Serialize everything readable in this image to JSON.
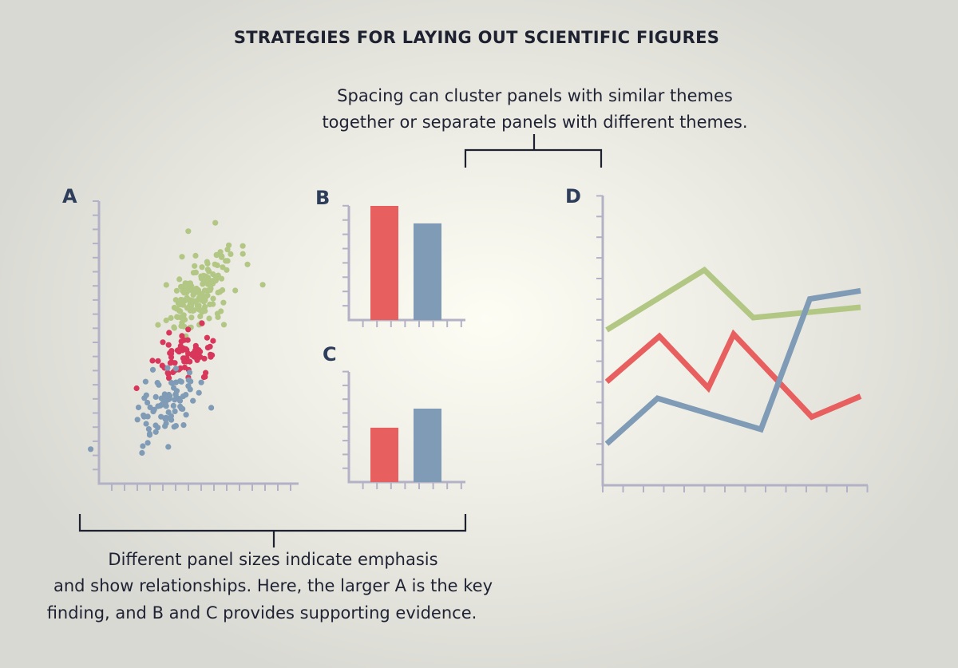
{
  "title": "STRATEGIES FOR LAYING OUT SCIENTIFIC FIGURES",
  "annotations": {
    "spacing": [
      "Spacing can cluster panels with similar themes",
      "together or separate panels with different themes."
    ],
    "sizes": [
      "Different panel sizes indicate emphasis",
      "and show relationships. Here, the larger A is the key",
      "finding, and B and C provides supporting evidence."
    ]
  },
  "colors": {
    "green": "#b3c784",
    "red": "#e85f5f",
    "red_dots": "#d8365a",
    "blue": "#7f9bb6",
    "axis": "#b3b1c6",
    "label": "#2e3e5a"
  },
  "chart_data": [
    {
      "panel": "A",
      "type": "scatter",
      "xlim": [
        0,
        14
      ],
      "ylim": [
        0,
        20
      ],
      "series": [
        {
          "color": "green",
          "center": [
            7,
            13.5
          ],
          "spread": [
            1.1,
            1.5
          ],
          "n": 170
        },
        {
          "color": "red_dots",
          "center": [
            6.2,
            9.2
          ],
          "spread": [
            1.0,
            0.7
          ],
          "n": 70
        },
        {
          "color": "blue",
          "center": [
            4.8,
            5.6
          ],
          "spread": [
            1.0,
            1.3
          ],
          "n": 90
        }
      ]
    },
    {
      "panel": "B",
      "type": "bar",
      "values": [
        8.5,
        7.2
      ],
      "colors": [
        "red",
        "blue"
      ],
      "ylim": [
        0,
        8.5
      ]
    },
    {
      "panel": "C",
      "type": "bar",
      "values": [
        3.7,
        5.0
      ],
      "colors": [
        "red",
        "blue"
      ],
      "ylim": [
        0,
        7.5
      ]
    },
    {
      "panel": "D",
      "type": "line",
      "xlim": [
        0,
        13
      ],
      "ylim": [
        0,
        14
      ],
      "series": [
        {
          "color": "green",
          "x": [
            0,
            5,
            7.5,
            13
          ],
          "y": [
            7.5,
            10.4,
            8.1,
            8.6
          ]
        },
        {
          "color": "red",
          "x": [
            0,
            2.7,
            5.2,
            6.5,
            10.5,
            13
          ],
          "y": [
            5,
            7.2,
            4.7,
            7.3,
            3.3,
            4.3
          ]
        },
        {
          "color": "blue",
          "x": [
            0,
            2.6,
            7.9,
            10.4,
            13
          ],
          "y": [
            2,
            4.2,
            2.7,
            9,
            9.4
          ]
        }
      ]
    }
  ]
}
